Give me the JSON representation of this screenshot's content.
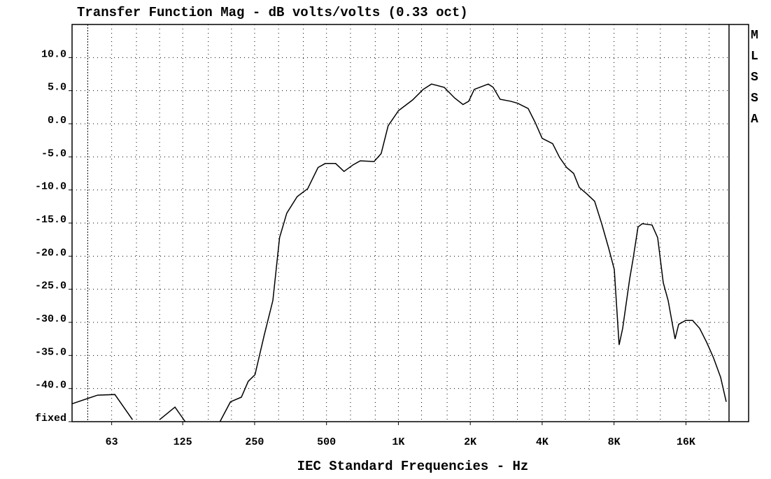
{
  "chart_data": {
    "type": "line",
    "title": "Transfer Function Mag - dB volts/volts (0.33 oct)",
    "x_label": "IEC Standard Frequencies - Hz",
    "side_label": "MLSSA",
    "color": "#000000",
    "log_x": true,
    "grid": true,
    "xlim": [
      43,
      24240
    ],
    "ylim": [
      -45,
      15
    ],
    "xticks": [
      63,
      125,
      250,
      500,
      {
        "value": 1000,
        "label": "1K"
      },
      {
        "value": 2000,
        "label": "2K"
      },
      {
        "value": 4000,
        "label": "4K"
      },
      {
        "value": 8000,
        "label": "8K"
      },
      {
        "value": 16000,
        "label": "16K"
      }
    ],
    "xminorticks": [
      50,
      63,
      80,
      100,
      125,
      160,
      200,
      250,
      315,
      400,
      500,
      630,
      800,
      1000,
      1250,
      1600,
      2000,
      2500,
      3150,
      4000,
      5000,
      6300,
      8000,
      10000,
      12500,
      16000,
      20000
    ],
    "yticks": [
      {
        "value": 10,
        "label": "10.0"
      },
      {
        "value": 5,
        "label": "5.0"
      },
      {
        "value": 0,
        "label": "0.0"
      },
      {
        "value": -5,
        "label": "-5.0"
      },
      {
        "value": -10,
        "label": "-10.0"
      },
      {
        "value": -15,
        "label": "-15.0"
      },
      {
        "value": -20,
        "label": "-20.0"
      },
      {
        "value": -25,
        "label": "-25.0"
      },
      {
        "value": -30,
        "label": "-30.0"
      },
      {
        "value": -35,
        "label": "-35.0"
      },
      {
        "value": -40,
        "label": "-40.0"
      },
      {
        "value": -45,
        "label": "fixed"
      }
    ],
    "x": [
      43,
      55,
      65,
      77,
      null,
      100,
      116,
      128,
      null,
      179,
      198,
      220,
      235,
      251,
      274,
      298,
      318,
      341,
      377,
      417,
      461,
      494,
      546,
      592,
      646,
      692,
      791,
      847,
      906,
      1002,
      1147,
      1270,
      1377,
      1555,
      1720,
      1865,
      1969,
      2079,
      2379,
      2494,
      2667,
      2952,
      3158,
      3494,
      3738,
      4000,
      4425,
      4735,
      5065,
      5418,
      5718,
      6200,
      6635,
      7100,
      7594,
      8015,
      8400,
      8693,
      9297,
      9616,
      10081,
      10500,
      11540,
      12180,
      12860,
      13480,
      14410,
      14910,
      15950,
      17070,
      18260,
      19540,
      20900,
      22360,
      23590
    ],
    "values": [
      -42.3,
      -41,
      -40.9,
      -44.7,
      null,
      -44.7,
      -42.8,
      -45,
      null,
      -45,
      -42,
      -41.3,
      -38.9,
      -37.9,
      -32,
      -26.7,
      -17.2,
      -13.5,
      -11,
      -9.8,
      -6.6,
      -6,
      -6,
      -7.2,
      -6.2,
      -5.6,
      -5.7,
      -4.5,
      -0.3,
      2,
      3.6,
      5.2,
      6,
      5.5,
      3.9,
      2.9,
      3.4,
      5.2,
      6,
      5.5,
      3.7,
      3.4,
      3.1,
      2.3,
      0.2,
      -2.2,
      -3,
      -5.1,
      -6.6,
      -7.5,
      -9.6,
      -10.7,
      -11.7,
      -15.1,
      -18.8,
      -22,
      -33.4,
      -30.9,
      -23.5,
      -20.4,
      -15.6,
      -15.1,
      -15.3,
      -17.2,
      -24,
      -26.7,
      -32.5,
      -30.3,
      -29.7,
      -29.7,
      -30.9,
      -33,
      -35.4,
      -38.3,
      -42
    ]
  }
}
